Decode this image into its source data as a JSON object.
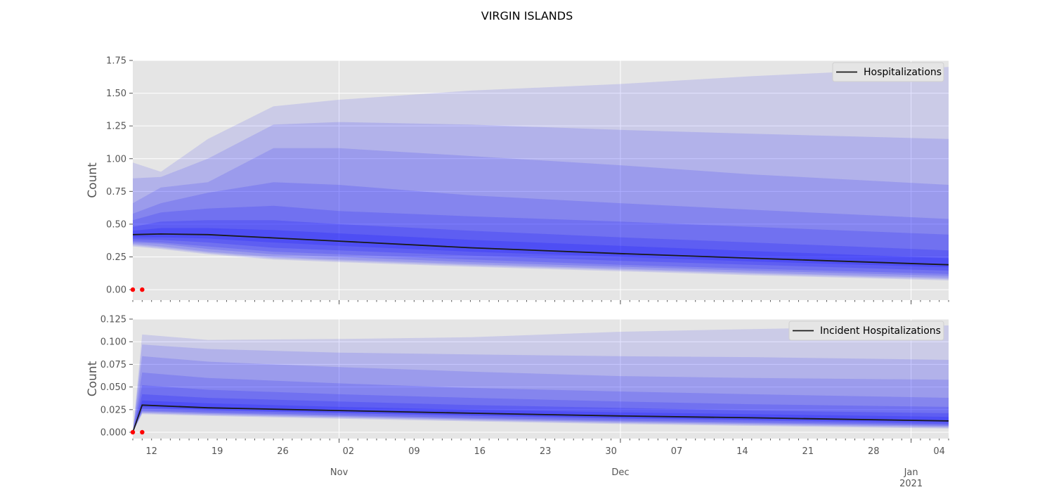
{
  "title": "VIRGIN ISLANDS",
  "colors": {
    "panel_bg": "#e5e5e5",
    "grid": "#ffffff",
    "band": "#0000ff",
    "median": "#1a1a1a",
    "observed": "#ff0000"
  },
  "x_axis": {
    "type": "date",
    "start": "2020-10-10",
    "end": "2021-01-05",
    "day_labels": [
      {
        "date": "2020-10-12",
        "label": "12"
      },
      {
        "date": "2020-10-19",
        "label": "19"
      },
      {
        "date": "2020-10-26",
        "label": "26"
      },
      {
        "date": "2020-11-02",
        "label": "02"
      },
      {
        "date": "2020-11-09",
        "label": "09"
      },
      {
        "date": "2020-11-16",
        "label": "16"
      },
      {
        "date": "2020-11-23",
        "label": "23"
      },
      {
        "date": "2020-11-30",
        "label": "30"
      },
      {
        "date": "2020-12-07",
        "label": "07"
      },
      {
        "date": "2020-12-14",
        "label": "14"
      },
      {
        "date": "2020-12-21",
        "label": "21"
      },
      {
        "date": "2020-12-28",
        "label": "28"
      },
      {
        "date": "2021-01-04",
        "label": "04"
      }
    ],
    "month_labels": [
      {
        "date": "2020-11-01",
        "label": "Nov"
      },
      {
        "date": "2020-12-01",
        "label": "Dec"
      },
      {
        "date": "2021-01-01",
        "label": "Jan",
        "year": "2021"
      }
    ]
  },
  "chart_data": [
    {
      "type": "area",
      "ylabel": "Count",
      "ylim": [
        -0.08,
        1.75
      ],
      "yticks": [
        0.0,
        0.25,
        0.5,
        0.75,
        1.0,
        1.25,
        1.5,
        1.75
      ],
      "ytick_labels": [
        "0.00",
        "0.25",
        "0.50",
        "0.75",
        "1.00",
        "1.25",
        "1.50",
        "1.75"
      ],
      "grid": true,
      "legend": {
        "label": "Hospitalizations",
        "position": "top-right"
      },
      "x": [
        "2020-10-10",
        "2020-10-13",
        "2020-10-18",
        "2020-10-25",
        "2020-11-01",
        "2020-11-15",
        "2020-12-01",
        "2020-12-15",
        "2021-01-05"
      ],
      "median": [
        0.42,
        0.425,
        0.42,
        0.395,
        0.37,
        0.32,
        0.275,
        0.24,
        0.19
      ],
      "bands": [
        {
          "lower": [
            0.33,
            0.31,
            0.27,
            0.23,
            0.21,
            0.175,
            0.14,
            0.11,
            0.07
          ],
          "upper": [
            0.97,
            0.9,
            1.15,
            1.4,
            1.45,
            1.52,
            1.57,
            1.63,
            1.7
          ]
        },
        {
          "lower": [
            0.34,
            0.32,
            0.28,
            0.24,
            0.22,
            0.185,
            0.15,
            0.12,
            0.08
          ],
          "upper": [
            0.85,
            0.86,
            1.0,
            1.26,
            1.28,
            1.26,
            1.22,
            1.19,
            1.15
          ]
        },
        {
          "lower": [
            0.35,
            0.33,
            0.29,
            0.25,
            0.23,
            0.195,
            0.16,
            0.13,
            0.09
          ],
          "upper": [
            0.66,
            0.78,
            0.82,
            1.08,
            1.08,
            1.02,
            0.95,
            0.88,
            0.8
          ]
        },
        {
          "lower": [
            0.36,
            0.35,
            0.31,
            0.27,
            0.25,
            0.21,
            0.175,
            0.145,
            0.105
          ],
          "upper": [
            0.58,
            0.66,
            0.74,
            0.82,
            0.8,
            0.72,
            0.66,
            0.61,
            0.54
          ]
        },
        {
          "lower": [
            0.37,
            0.36,
            0.33,
            0.29,
            0.27,
            0.23,
            0.19,
            0.16,
            0.12
          ],
          "upper": [
            0.53,
            0.59,
            0.62,
            0.64,
            0.6,
            0.56,
            0.52,
            0.48,
            0.42
          ]
        },
        {
          "lower": [
            0.385,
            0.38,
            0.36,
            0.32,
            0.3,
            0.26,
            0.22,
            0.19,
            0.145
          ],
          "upper": [
            0.48,
            0.52,
            0.53,
            0.53,
            0.5,
            0.45,
            0.4,
            0.36,
            0.3
          ]
        },
        {
          "lower": [
            0.4,
            0.4,
            0.39,
            0.36,
            0.335,
            0.29,
            0.25,
            0.215,
            0.17
          ],
          "upper": [
            0.45,
            0.47,
            0.47,
            0.455,
            0.43,
            0.38,
            0.335,
            0.295,
            0.24
          ]
        }
      ],
      "observed": [
        {
          "x": "2020-10-10",
          "y": 0
        },
        {
          "x": "2020-10-11",
          "y": 0
        }
      ]
    },
    {
      "type": "area",
      "ylabel": "Count",
      "ylim": [
        -0.007,
        0.125
      ],
      "yticks": [
        0.0,
        0.025,
        0.05,
        0.075,
        0.1,
        0.125
      ],
      "ytick_labels": [
        "0.000",
        "0.025",
        "0.050",
        "0.075",
        "0.100",
        "0.125"
      ],
      "grid": true,
      "legend": {
        "label": "Incident Hospitalizations",
        "position": "top-right"
      },
      "x": [
        "2020-10-10",
        "2020-10-11",
        "2020-10-18",
        "2020-11-01",
        "2020-11-15",
        "2020-12-01",
        "2020-12-15",
        "2021-01-05"
      ],
      "median": [
        0.0,
        0.03,
        0.027,
        0.024,
        0.021,
        0.018,
        0.016,
        0.0125
      ],
      "bands": [
        {
          "lower": [
            0.0,
            0.02,
            0.018,
            0.015,
            0.012,
            0.009,
            0.007,
            0.004
          ],
          "upper": [
            0.0,
            0.108,
            0.102,
            0.103,
            0.105,
            0.111,
            0.114,
            0.118
          ]
        },
        {
          "lower": [
            0.0,
            0.021,
            0.019,
            0.016,
            0.013,
            0.01,
            0.008,
            0.005
          ],
          "upper": [
            0.0,
            0.097,
            0.092,
            0.088,
            0.086,
            0.084,
            0.083,
            0.08
          ]
        },
        {
          "lower": [
            0.0,
            0.022,
            0.02,
            0.017,
            0.014,
            0.011,
            0.009,
            0.006
          ],
          "upper": [
            0.0,
            0.084,
            0.078,
            0.072,
            0.067,
            0.062,
            0.06,
            0.058
          ]
        },
        {
          "lower": [
            0.0,
            0.023,
            0.021,
            0.018,
            0.015,
            0.012,
            0.01,
            0.007
          ],
          "upper": [
            0.0,
            0.066,
            0.06,
            0.054,
            0.049,
            0.045,
            0.042,
            0.038
          ]
        },
        {
          "lower": [
            0.0,
            0.024,
            0.022,
            0.019,
            0.016,
            0.013,
            0.011,
            0.008
          ],
          "upper": [
            0.0,
            0.052,
            0.047,
            0.042,
            0.038,
            0.034,
            0.031,
            0.028
          ]
        },
        {
          "lower": [
            0.0,
            0.026,
            0.024,
            0.021,
            0.018,
            0.015,
            0.013,
            0.009
          ],
          "upper": [
            0.0,
            0.042,
            0.038,
            0.034,
            0.03,
            0.027,
            0.024,
            0.021
          ]
        },
        {
          "lower": [
            0.0,
            0.028,
            0.025,
            0.022,
            0.019,
            0.016,
            0.014,
            0.011
          ],
          "upper": [
            0.0,
            0.035,
            0.032,
            0.028,
            0.025,
            0.022,
            0.02,
            0.017
          ]
        }
      ],
      "observed": [
        {
          "x": "2020-10-10",
          "y": 0
        },
        {
          "x": "2020-10-11",
          "y": 0
        }
      ]
    }
  ]
}
